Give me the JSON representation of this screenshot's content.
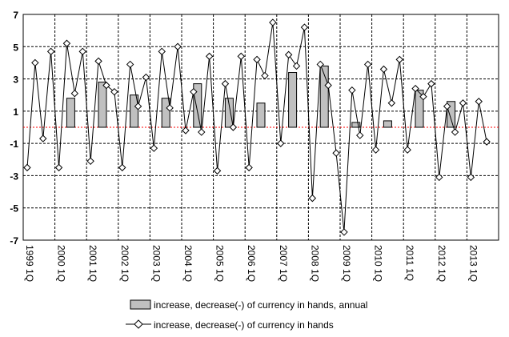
{
  "chart_data": {
    "type": "bar+line",
    "title": "",
    "xlabel": "",
    "ylabel": "",
    "ylim": [
      -7,
      7
    ],
    "yticks": [
      "7",
      "5",
      "3",
      "1",
      "-1",
      "-3",
      "-5",
      "-7"
    ],
    "grid": true,
    "legend_position": "bottom",
    "year_labels": [
      "1999 1Q",
      "2000 1Q",
      "2001 1Q",
      "2002 1Q",
      "2003 1Q",
      "2004 1Q",
      "2005 1Q",
      "2006 1Q",
      "2007 1Q",
      "2008 1Q",
      "2009 1Q",
      "2010 1Q",
      "2011 1Q",
      "2012 1Q",
      "2013 1Q"
    ],
    "series": [
      {
        "name": "increase, decrease(-) of currency in hands, annual",
        "kind": "bar",
        "color": "#c0c0c0",
        "values": [
          null,
          1.8,
          2.8,
          2.0,
          1.8,
          2.7,
          1.8,
          1.5,
          3.4,
          3.8,
          0.3,
          0.4,
          2.3,
          1.6,
          null
        ]
      },
      {
        "name": "increase, decrease(-) of currency in hands",
        "kind": "line",
        "color": "#000000",
        "values": [
          -2.5,
          4.0,
          -0.7,
          4.7,
          -2.5,
          5.2,
          2.1,
          4.7,
          -2.1,
          4.1,
          2.6,
          2.2,
          -2.5,
          3.9,
          1.3,
          3.1,
          -1.3,
          4.7,
          1.2,
          5.0,
          -0.2,
          2.2,
          -0.3,
          4.4,
          -2.7,
          2.7,
          0.0,
          4.4,
          -2.5,
          4.2,
          3.2,
          6.5,
          -1.0,
          4.5,
          3.8,
          6.2,
          -4.4,
          3.9,
          2.6,
          -1.6,
          -6.5,
          2.3,
          -0.5,
          3.9,
          -1.4,
          3.6,
          1.5,
          4.2,
          -1.4,
          2.4,
          1.9,
          2.7,
          -3.1,
          1.3,
          -0.3,
          1.5,
          -3.1,
          1.6,
          -0.9
        ]
      }
    ]
  },
  "legend": {
    "bar_label": "increase, decrease(-) of currency in hands, annual",
    "line_label": "increase, decrease(-) of currency in hands"
  },
  "colors": {
    "bar_fill": "#c0c0c0",
    "zero_line": "#ff0000",
    "line": "#000000",
    "marker_fill": "#ffffff"
  }
}
